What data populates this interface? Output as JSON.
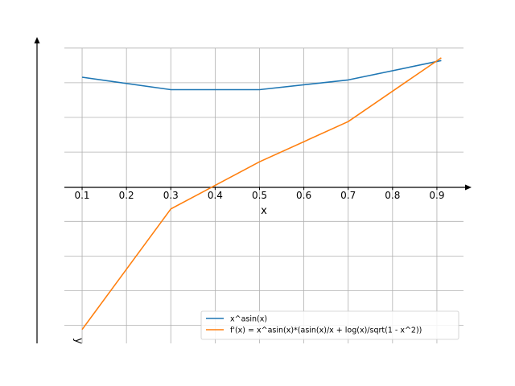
{
  "chart_data": {
    "type": "line",
    "xlabel": "x",
    "ylabel": "y",
    "x_ticks": [
      "0.1",
      "0.2",
      "0.3",
      "0.4",
      "0.5",
      "0.6",
      "0.7",
      "0.8",
      "0.9"
    ],
    "xlim": [
      0.06,
      0.96
    ],
    "ylim": [
      -1.13,
      1.08
    ],
    "y_gridlines": [
      -1.0,
      -0.75,
      -0.5,
      -0.25,
      0.0,
      0.25,
      0.5,
      0.75,
      1.0
    ],
    "grid": true,
    "legend_position": "lower-right",
    "series": [
      {
        "name": "x^asin(x)",
        "color": "#1f77b4",
        "x": [
          0.1,
          0.3,
          0.5,
          0.7,
          0.91
        ],
        "y": [
          0.79,
          0.7,
          0.7,
          0.77,
          0.91
        ]
      },
      {
        "name": "f'(x) = x^asin(x)*(asin(x)/x + log(x)/sqrt(1 - x^2))",
        "color": "#ff7f0e",
        "x": [
          0.1,
          0.3,
          0.5,
          0.7,
          0.91
        ],
        "y": [
          -1.03,
          -0.16,
          0.18,
          0.47,
          0.93
        ]
      }
    ]
  }
}
